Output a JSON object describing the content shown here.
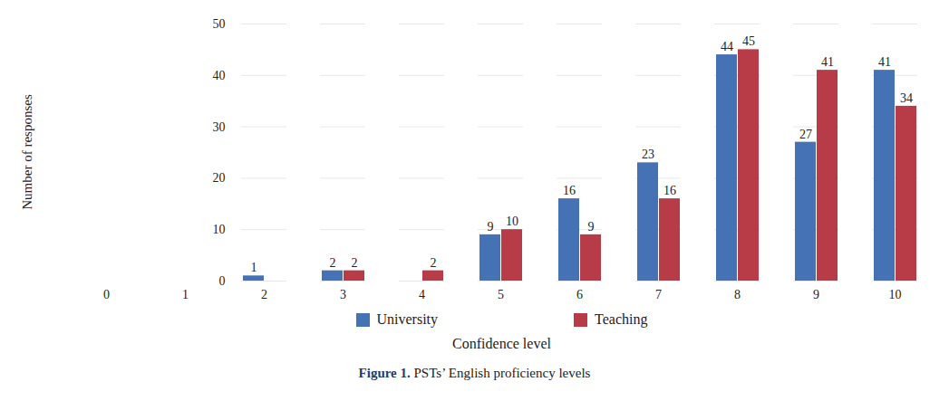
{
  "chart_data": {
    "type": "bar",
    "title": "Figure 1. PSTs’ English proficiency levels",
    "x_label": "Confidence level",
    "y_label": "Number of responses",
    "categories": [
      "0",
      "1",
      "2",
      "3",
      "4",
      "5",
      "6",
      "7",
      "8",
      "9",
      "10"
    ],
    "series": [
      {
        "name": "University",
        "color": "#4472b4",
        "values": [
          null,
          null,
          1,
          2,
          null,
          9,
          16,
          23,
          44,
          27,
          41
        ]
      },
      {
        "name": "Teaching",
        "color": "#b83b48",
        "values": [
          null,
          null,
          null,
          2,
          2,
          10,
          9,
          16,
          45,
          41,
          34
        ]
      }
    ],
    "ylim": [
      0,
      50
    ],
    "yticks": [
      0,
      10,
      20,
      30,
      40,
      50
    ],
    "grid": true,
    "legend": "bottom",
    "data_labels": true
  }
}
